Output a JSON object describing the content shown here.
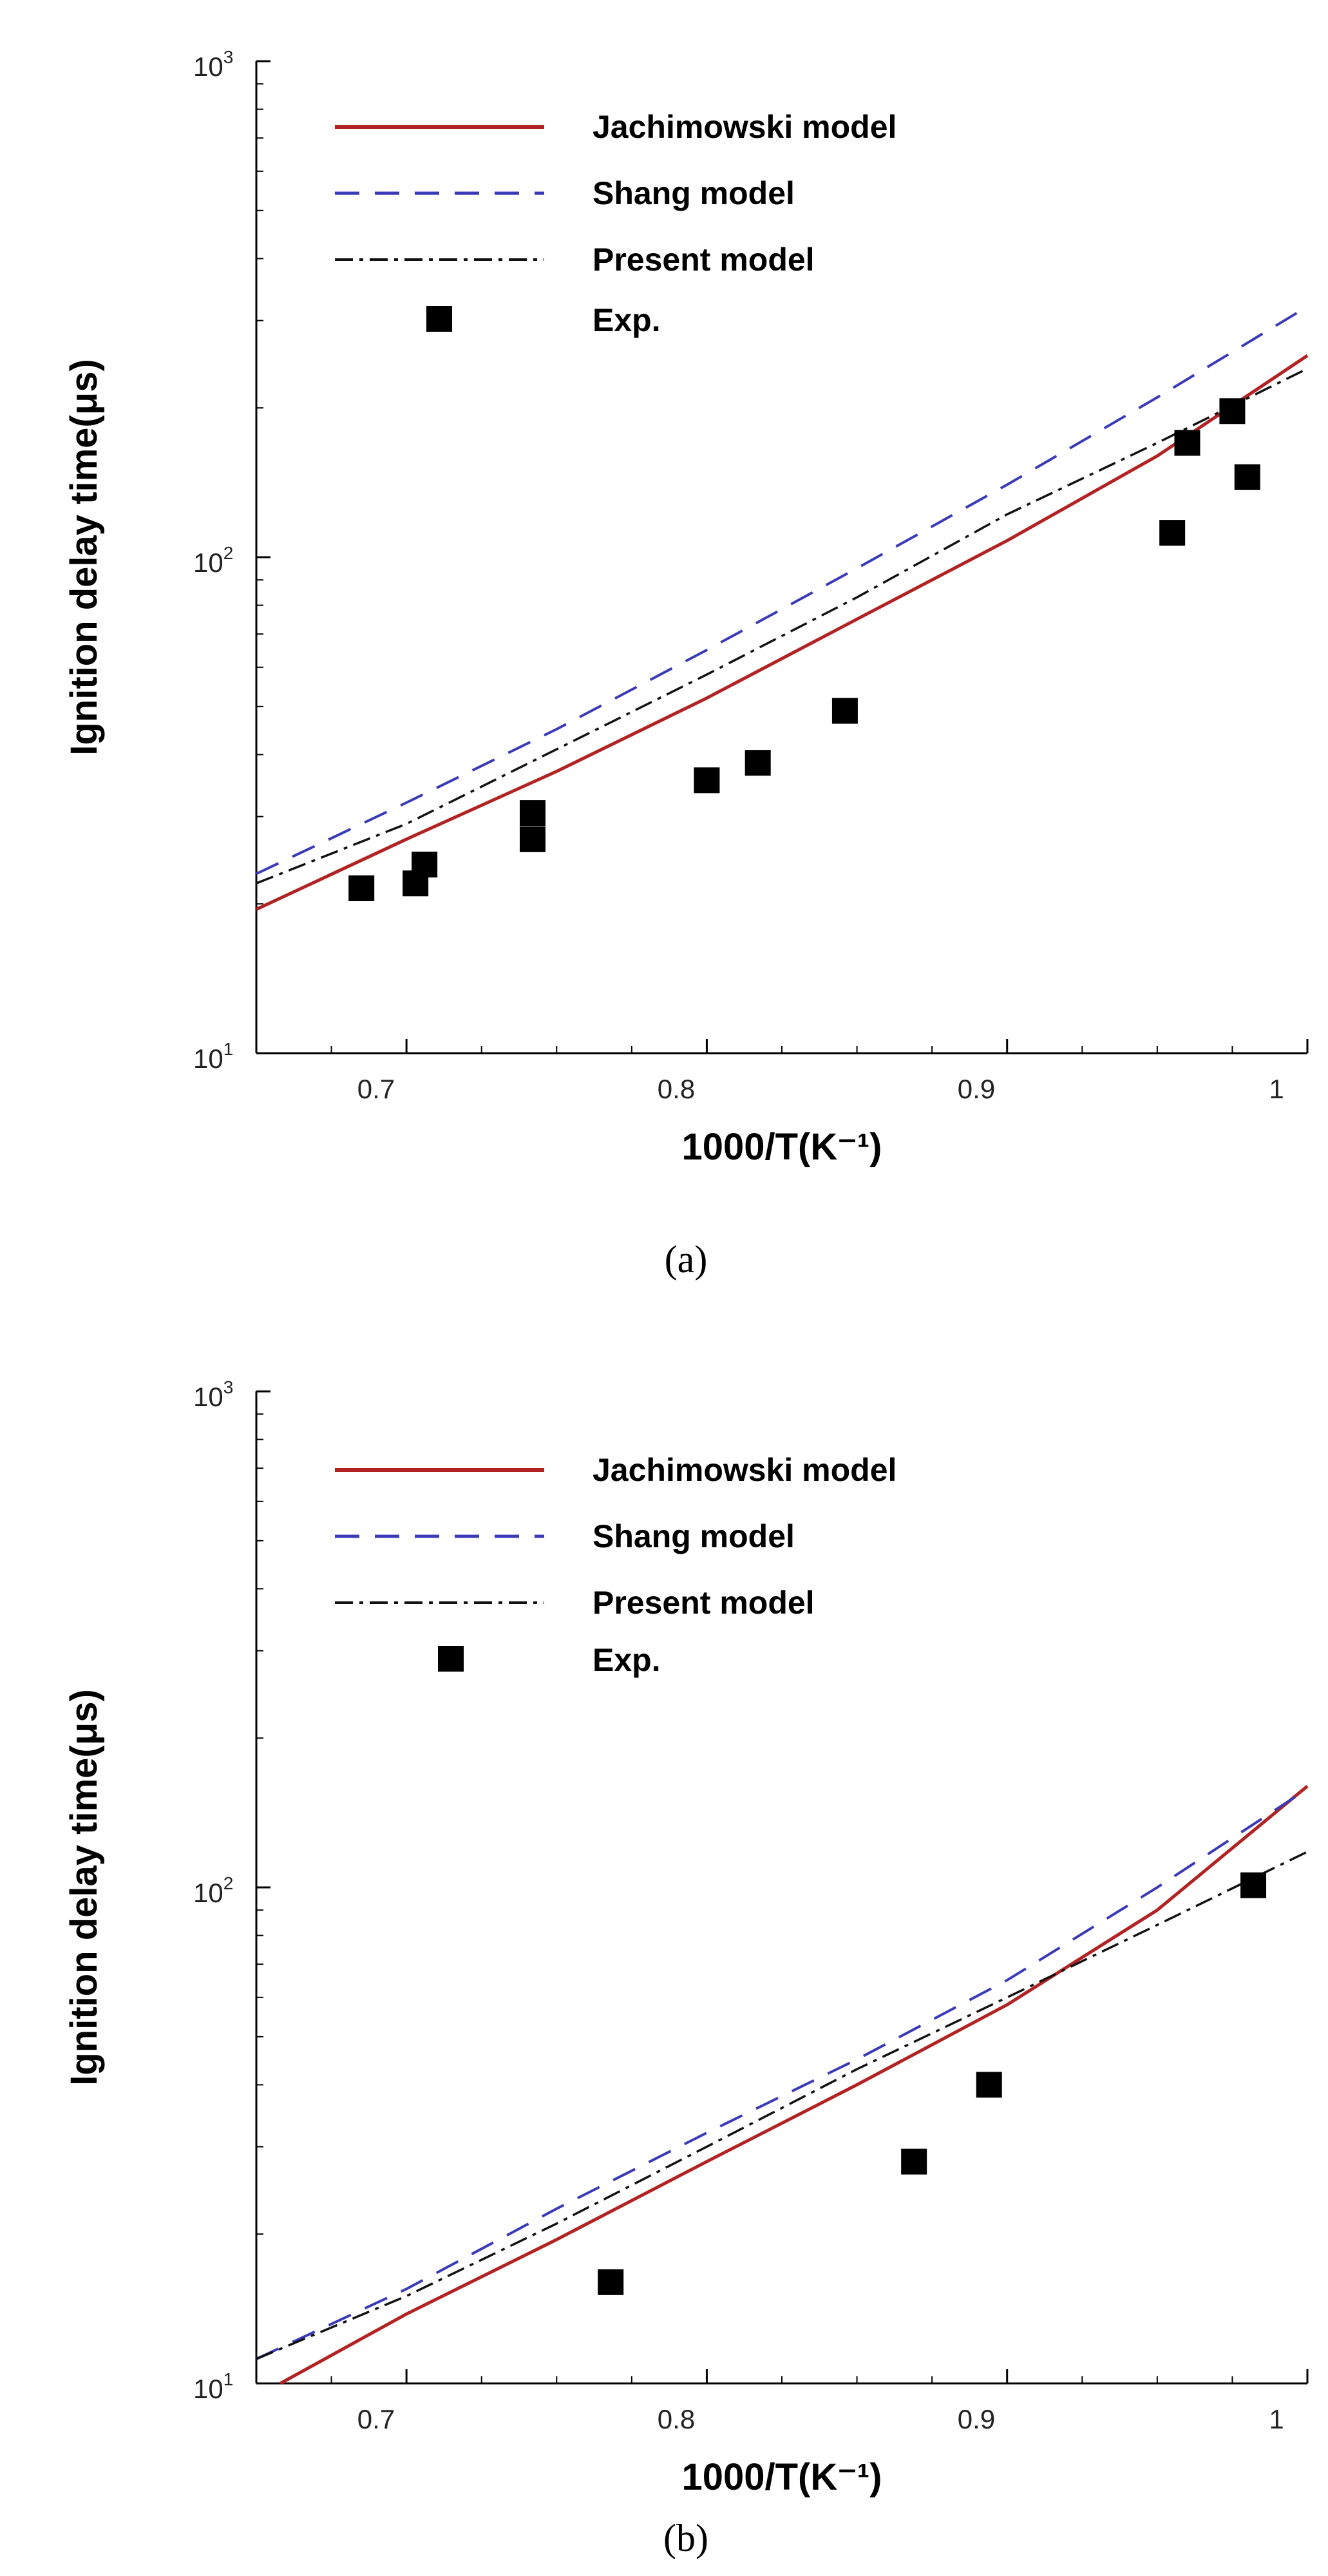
{
  "chart_data": [
    {
      "panel": "a",
      "type": "line",
      "xlabel": "1000/T(K⁻¹)",
      "ylabel": "Ignition delay time(μs)",
      "xlim": [
        0.65,
        1.0
      ],
      "ylim": [
        10,
        1000
      ],
      "yscale": "log",
      "x_ticks": [
        "0.7",
        "0.8",
        "0.9",
        "1"
      ],
      "y_tick_labels": [
        {
          "base": "10",
          "exp": "1"
        },
        {
          "base": "10",
          "exp": "2"
        },
        {
          "base": "10",
          "exp": "3"
        }
      ],
      "legend_position": "top-left",
      "series": [
        {
          "name": "Jachimowski model",
          "style": "solid",
          "color": "#b22222",
          "x": [
            0.65,
            0.7,
            0.75,
            0.8,
            0.85,
            0.9,
            0.95,
            1.0
          ],
          "y": [
            19.5,
            27,
            37,
            52,
            75,
            108,
            160,
            255
          ]
        },
        {
          "name": "Shang model",
          "style": "dashed",
          "color": "#3a3ab8",
          "x": [
            0.65,
            0.7,
            0.75,
            0.8,
            0.85,
            0.9,
            0.95,
            1.0
          ],
          "y": [
            23,
            32,
            45,
            65,
            95,
            140,
            210,
            320
          ]
        },
        {
          "name": "Present model",
          "style": "dashdot",
          "color": "#111111",
          "x": [
            0.65,
            0.7,
            0.75,
            0.8,
            0.85,
            0.9,
            0.95,
            1.0
          ],
          "y": [
            22,
            29,
            41,
            58,
            83,
            122,
            170,
            240
          ]
        },
        {
          "name": "Exp.",
          "style": "marker",
          "color": "#000000",
          "x": [
            0.685,
            0.703,
            0.706,
            0.742,
            0.742,
            0.8,
            0.817,
            0.846,
            0.955,
            0.96,
            0.975,
            0.98
          ],
          "y": [
            21.5,
            22,
            24,
            27,
            30.5,
            35.5,
            38.5,
            49,
            112,
            170,
            197,
            145
          ]
        }
      ]
    },
    {
      "panel": "b",
      "type": "line",
      "xlabel": "1000/T(K⁻¹)",
      "ylabel": "Ignition delay time(μs)",
      "xlim": [
        0.65,
        1.0
      ],
      "ylim": [
        10,
        1000
      ],
      "yscale": "log",
      "x_ticks": [
        "0.7",
        "0.8",
        "0.9",
        "1"
      ],
      "y_tick_labels": [
        {
          "base": "10",
          "exp": "1"
        },
        {
          "base": "10",
          "exp": "2"
        },
        {
          "base": "10",
          "exp": "3"
        }
      ],
      "legend_position": "top-left",
      "series": [
        {
          "name": "Jachimowski model",
          "style": "solid",
          "color": "#b22222",
          "x": [
            0.658,
            0.7,
            0.75,
            0.8,
            0.85,
            0.9,
            0.95,
            1.0
          ],
          "y": [
            10,
            13.8,
            19.5,
            28,
            40,
            58,
            90,
            160
          ]
        },
        {
          "name": "Shang model",
          "style": "dashed",
          "color": "#3a3ab8",
          "x": [
            0.65,
            0.7,
            0.75,
            0.8,
            0.85,
            0.9,
            0.95,
            1.0
          ],
          "y": [
            11.2,
            15.5,
            22.5,
            32,
            45,
            65,
            100,
            158
          ]
        },
        {
          "name": "Present model",
          "style": "dashdot",
          "color": "#111111",
          "x": [
            0.65,
            0.7,
            0.75,
            0.8,
            0.85,
            0.9,
            0.95,
            1.0
          ],
          "y": [
            11.2,
            15,
            21,
            30,
            43,
            60,
            84,
            118
          ]
        },
        {
          "name": "Exp.",
          "style": "marker",
          "color": "#000000",
          "x": [
            0.768,
            0.869,
            0.894,
            0.982
          ],
          "y": [
            16,
            28,
            40,
            101
          ]
        }
      ]
    }
  ],
  "panel_labels": [
    "(a)",
    "(b)"
  ]
}
